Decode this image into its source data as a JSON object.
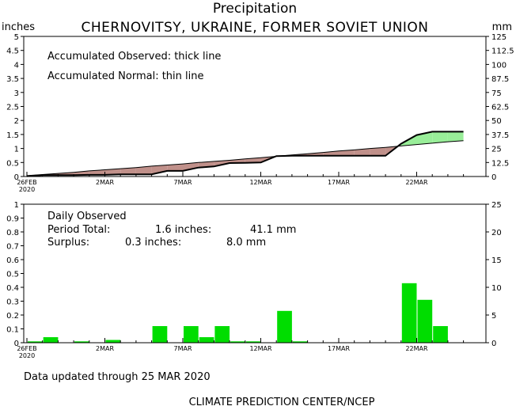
{
  "header": {
    "title": "Precipitation",
    "subtitle": "CHERNOVITSY, UKRAINE, FORMER SOVIET UNION",
    "left_unit": "inches",
    "right_unit": "mm"
  },
  "top_panel": {
    "legend_line1": "Accumulated Observed: thick line",
    "legend_line2": "Accumulated Normal: thin line"
  },
  "bottom_panel": {
    "label": "Daily Observed",
    "period_label": "Period Total:",
    "period_inches": "1.6 inches:",
    "period_mm": "41.1 mm",
    "surplus_label": "Surplus:",
    "surplus_inches": "0.3 inches:",
    "surplus_mm": "8.0 mm"
  },
  "footer": {
    "updated": "Data updated through 25 MAR 2020",
    "credit": "CLIMATE PREDICTION CENTER/NCEP"
  },
  "colors": {
    "deficit_fill": "#c0908a",
    "surplus_fill": "#99ee99",
    "bar": "#00dd00",
    "line": "#000000"
  },
  "chart_data": [
    {
      "type": "area",
      "title": "Precipitation",
      "subtitle": "CHERNOVITSY, UKRAINE, FORMER SOVIET UNION",
      "ylabel_left": "inches",
      "ylabel_right": "mm",
      "ylim": [
        0,
        5
      ],
      "ylim_right": [
        0,
        125
      ],
      "yticks_left": [
        "0",
        "0.5",
        "1",
        "1.5",
        "2",
        "2.5",
        "3",
        "3.5",
        "4",
        "4.5",
        "5"
      ],
      "yticks_right": [
        "0",
        "12.5",
        "25",
        "37.5",
        "50",
        "62.5",
        "75",
        "87.5",
        "100",
        "112.5",
        "125"
      ],
      "xticks": [
        {
          "day": 0,
          "label": "26FEB",
          "label2": "2020"
        },
        {
          "day": 5,
          "label": "2MAR"
        },
        {
          "day": 10,
          "label": "7MAR"
        },
        {
          "day": 15,
          "label": "12MAR"
        },
        {
          "day": 20,
          "label": "17MAR"
        },
        {
          "day": 25,
          "label": "22MAR"
        }
      ],
      "x_days": [
        0,
        1,
        2,
        3,
        4,
        5,
        6,
        7,
        8,
        9,
        10,
        11,
        12,
        13,
        14,
        15,
        16,
        17,
        18,
        19,
        20,
        21,
        22,
        23,
        24,
        25,
        26,
        27,
        28
      ],
      "series": [
        {
          "name": "Accumulated Observed",
          "style": "thick",
          "values": [
            0.01,
            0.05,
            0.05,
            0.05,
            0.06,
            0.06,
            0.08,
            0.08,
            0.08,
            0.2,
            0.2,
            0.32,
            0.36,
            0.48,
            0.49,
            0.5,
            0.73,
            0.74,
            0.74,
            0.74,
            0.74,
            0.74,
            0.74,
            0.74,
            1.17,
            1.48,
            1.6,
            1.6,
            1.6
          ]
        },
        {
          "name": "Accumulated Normal",
          "style": "thin",
          "values": [
            0.03,
            0.07,
            0.11,
            0.15,
            0.2,
            0.24,
            0.28,
            0.32,
            0.37,
            0.41,
            0.45,
            0.5,
            0.54,
            0.58,
            0.63,
            0.67,
            0.72,
            0.77,
            0.81,
            0.86,
            0.91,
            0.95,
            1.0,
            1.04,
            1.09,
            1.14,
            1.19,
            1.24,
            1.28
          ]
        }
      ]
    },
    {
      "type": "bar",
      "title": "Daily Observed",
      "ylabel_left": "inches",
      "ylabel_right": "mm",
      "ylim": [
        0,
        1
      ],
      "ylim_right": [
        0,
        25
      ],
      "yticks_left": [
        "0",
        "0.1",
        "0.2",
        "0.3",
        "0.4",
        "0.5",
        "0.6",
        "0.7",
        "0.8",
        "0.9",
        "1"
      ],
      "yticks_right": [
        "0",
        "5",
        "10",
        "15",
        "20",
        "25"
      ],
      "xticks": [
        {
          "day": 0,
          "label": "26FEB",
          "label2": "2020"
        },
        {
          "day": 5,
          "label": "2MAR"
        },
        {
          "day": 10,
          "label": "7MAR"
        },
        {
          "day": 15,
          "label": "12MAR"
        },
        {
          "day": 20,
          "label": "17MAR"
        },
        {
          "day": 25,
          "label": "22MAR"
        }
      ],
      "x_days": [
        0,
        1,
        2,
        3,
        4,
        5,
        6,
        7,
        8,
        9,
        10,
        11,
        12,
        13,
        14,
        15,
        16,
        17,
        18,
        19,
        20,
        21,
        22,
        23,
        24,
        25,
        26,
        27,
        28
      ],
      "values": [
        0.01,
        0.04,
        0,
        0.01,
        0,
        0.02,
        0,
        0,
        0.12,
        0,
        0.12,
        0.04,
        0.12,
        0.01,
        0.01,
        0,
        0.23,
        0.01,
        0,
        0,
        0,
        0,
        0,
        0,
        0.43,
        0.31,
        0.12,
        0,
        0
      ]
    }
  ]
}
